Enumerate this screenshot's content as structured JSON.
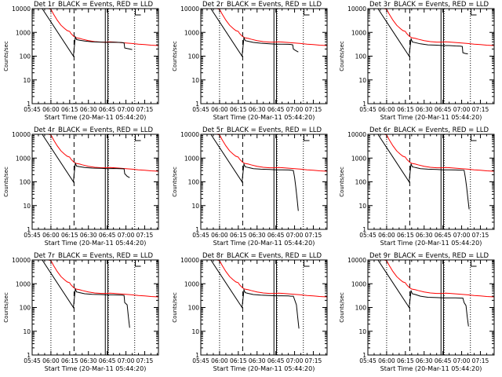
{
  "chart_data": {
    "type": "line",
    "layout": "3x3 grid",
    "xlabel": "Start Time (20-Mar-11 05:44:20)",
    "ylabel": "Counts/sec",
    "x_ticks": [
      "05:45",
      "06:00",
      "06:15",
      "06:30",
      "06:45",
      "07:00",
      "07:15"
    ],
    "x_tick_minutes": [
      0,
      15,
      30,
      45,
      60,
      75,
      90
    ],
    "xlim_minutes": [
      0,
      101
    ],
    "y_scale": "log",
    "ylim": [
      1,
      10000
    ],
    "y_ticks": [
      "1",
      "10",
      "100",
      "1000",
      "10000"
    ],
    "y_tick_values": [
      1,
      10,
      100,
      1000,
      10000
    ],
    "legend_text": "BLACK = Events, RED = LLD",
    "series_colors": {
      "events": "#000000",
      "lld": "#ff0000"
    },
    "markers": {
      "dotted_minutes": [
        15,
        61,
        82
      ],
      "dashed_minutes": [
        33.5
      ],
      "solid_double_minutes": [
        58.5,
        60.5
      ]
    },
    "lld_curve": {
      "minutes": [
        0,
        3,
        5,
        7,
        10,
        13,
        15,
        17,
        20,
        23,
        26,
        28,
        30,
        31,
        33,
        35,
        38,
        40,
        45,
        50,
        55,
        58,
        60,
        62,
        65,
        70,
        75,
        80,
        85,
        90,
        95,
        101
      ],
      "values": [
        10000,
        10000,
        10000,
        10000,
        10000,
        10000,
        9500,
        6000,
        3300,
        2000,
        1450,
        1200,
        1100,
        900,
        700,
        600,
        560,
        520,
        450,
        410,
        390,
        390,
        395,
        400,
        395,
        375,
        360,
        340,
        320,
        305,
        290,
        280
      ]
    },
    "panels": [
      {
        "title": "Det 1r",
        "events": {
          "minutes": [
            0,
            2,
            4,
            6,
            8,
            33,
            34,
            34.5,
            35.5,
            38,
            42,
            48,
            55,
            60,
            65,
            70,
            72,
            73.5,
            74,
            76,
            78,
            80
          ],
          "values": [
            10000,
            10000,
            10000,
            10000,
            10000,
            100,
            350,
            650,
            500,
            470,
            430,
            400,
            390,
            380,
            385,
            380,
            370,
            360,
            220,
            210,
            200,
            190
          ]
        }
      },
      {
        "title": "Det 2r",
        "events": {
          "minutes": [
            0,
            2,
            4,
            6,
            8,
            33,
            34,
            34.5,
            35.5,
            38,
            42,
            48,
            55,
            60,
            65,
            70,
            72,
            73.5,
            74,
            76,
            78
          ],
          "values": [
            10000,
            10000,
            10000,
            10000,
            10000,
            100,
            330,
            600,
            450,
            420,
            380,
            350,
            330,
            320,
            320,
            315,
            310,
            300,
            200,
            170,
            150
          ]
        }
      },
      {
        "title": "Det 3r",
        "events": {
          "minutes": [
            0,
            2,
            4,
            6,
            8,
            33,
            34,
            34.5,
            35.5,
            38,
            42,
            48,
            55,
            60,
            65,
            70,
            74,
            75.5,
            76,
            78,
            80
          ],
          "values": [
            10000,
            10000,
            10000,
            10000,
            10000,
            100,
            300,
            560,
            400,
            370,
            330,
            300,
            290,
            280,
            280,
            270,
            265,
            255,
            140,
            130,
            125
          ]
        }
      },
      {
        "title": "Det 4r",
        "events": {
          "minutes": [
            0,
            2,
            4,
            6,
            8,
            33,
            34,
            34.5,
            35.5,
            38,
            42,
            48,
            55,
            60,
            65,
            70,
            72,
            73.5,
            74,
            76,
            78
          ],
          "values": [
            10000,
            10000,
            10000,
            10000,
            10000,
            100,
            350,
            600,
            460,
            430,
            400,
            380,
            370,
            360,
            365,
            360,
            355,
            350,
            220,
            170,
            150
          ]
        }
      },
      {
        "title": "Det 5r",
        "events": {
          "minutes": [
            0,
            2,
            4,
            6,
            8,
            33,
            34,
            34.5,
            35.5,
            38,
            42,
            48,
            55,
            60,
            65,
            70,
            72,
            74,
            75,
            76,
            77,
            78
          ],
          "values": [
            10000,
            10000,
            10000,
            10000,
            10000,
            100,
            320,
            560,
            430,
            400,
            360,
            340,
            330,
            320,
            320,
            315,
            310,
            300,
            150,
            60,
            20,
            6
          ]
        }
      },
      {
        "title": "Det 6r",
        "events": {
          "minutes": [
            0,
            2,
            4,
            6,
            8,
            33,
            34,
            34.5,
            35.5,
            38,
            42,
            48,
            55,
            60,
            65,
            70,
            74,
            77,
            78,
            79,
            80,
            81
          ],
          "values": [
            10000,
            10000,
            10000,
            10000,
            10000,
            100,
            330,
            580,
            430,
            400,
            360,
            340,
            330,
            320,
            320,
            315,
            310,
            305,
            150,
            60,
            20,
            7
          ]
        }
      },
      {
        "title": "Det 7r",
        "events": {
          "minutes": [
            0,
            2,
            4,
            6,
            8,
            33,
            34,
            34.5,
            35.5,
            38,
            42,
            48,
            55,
            60,
            65,
            70,
            72,
            73.5,
            74,
            76,
            77,
            78
          ],
          "values": [
            10000,
            10000,
            10000,
            10000,
            10000,
            100,
            330,
            600,
            450,
            420,
            380,
            360,
            350,
            340,
            340,
            335,
            330,
            320,
            160,
            130,
            40,
            14
          ]
        }
      },
      {
        "title": "Det 8r",
        "events": {
          "minutes": [
            0,
            2,
            4,
            6,
            8,
            33,
            34,
            34.5,
            35.5,
            38,
            42,
            48,
            55,
            60,
            65,
            70,
            72,
            74,
            75.5,
            76.5,
            77.5,
            78.5
          ],
          "values": [
            10000,
            10000,
            10000,
            10000,
            10000,
            100,
            300,
            560,
            420,
            390,
            350,
            330,
            320,
            310,
            310,
            305,
            300,
            300,
            180,
            130,
            40,
            13
          ]
        }
      },
      {
        "title": "Det 9r",
        "events": {
          "minutes": [
            0,
            2,
            4,
            6,
            8,
            33,
            34,
            34.5,
            35.5,
            38,
            42,
            48,
            55,
            60,
            65,
            70,
            74,
            76,
            77,
            78.5,
            79.5,
            80.5
          ],
          "values": [
            10000,
            10000,
            10000,
            10000,
            10000,
            100,
            280,
            520,
            380,
            350,
            300,
            270,
            260,
            255,
            255,
            255,
            250,
            250,
            160,
            120,
            40,
            16
          ]
        }
      }
    ]
  }
}
